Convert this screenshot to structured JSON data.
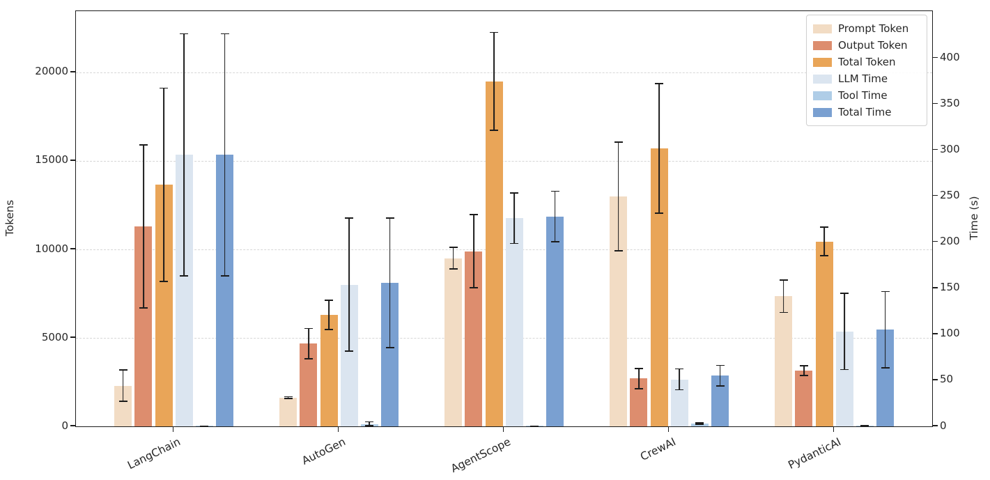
{
  "chart_data": {
    "type": "bar",
    "title": "",
    "categories": [
      "LangChain",
      "AutoGen",
      "AgentScope",
      "CrewAI",
      "PydanticAI"
    ],
    "series": [
      {
        "name": "Prompt Token",
        "axis": "tokens",
        "color": "#f2dcc4",
        "values": [
          2300,
          1630,
          9500,
          13000,
          7350
        ],
        "errors": [
          930,
          80,
          650,
          3100,
          950
        ]
      },
      {
        "name": "Output Token",
        "axis": "tokens",
        "color": "#dd8d6e",
        "values": [
          11300,
          4670,
          9900,
          2700,
          3150
        ],
        "errors": [
          4650,
          900,
          2100,
          600,
          300
        ]
      },
      {
        "name": "Total Token",
        "axis": "tokens",
        "color": "#e9a558",
        "values": [
          13650,
          6300,
          19500,
          15700,
          10450
        ],
        "errors": [
          5500,
          850,
          2800,
          3700,
          850
        ]
      },
      {
        "name": "LLM Time",
        "axis": "time",
        "color": "#dbe5f0",
        "values": [
          295,
          154,
          226,
          51,
          103
        ],
        "errors": [
          132,
          73,
          28,
          12,
          42
        ]
      },
      {
        "name": "Tool Time",
        "axis": "time",
        "color": "#afcde7",
        "values": [
          0.4,
          2,
          0.5,
          3,
          0.8
        ],
        "errors": [
          0.3,
          3.5,
          0.3,
          1.5,
          0.5
        ]
      },
      {
        "name": "Total Time",
        "axis": "time",
        "color": "#7aa0d1",
        "values": [
          295,
          156,
          228,
          55,
          105
        ],
        "errors": [
          132,
          71,
          28,
          12,
          42
        ]
      }
    ],
    "left_axis": {
      "label": "Tokens",
      "ticks": [
        0,
        5000,
        10000,
        15000,
        20000
      ],
      "max": 23460
    },
    "right_axis": {
      "label": "Time (s)",
      "ticks": [
        0,
        50,
        100,
        150,
        200,
        250,
        300,
        350,
        400
      ],
      "max": 451
    },
    "legend": {
      "position": "upper right",
      "entries": [
        "Prompt Token",
        "Output Token",
        "Total Token",
        "LLM Time",
        "Tool Time",
        "Total Time"
      ]
    },
    "grid": "horizontal dashed lines at left-axis ticks",
    "error_bars": true,
    "x_tick_rotation_deg": 26
  }
}
